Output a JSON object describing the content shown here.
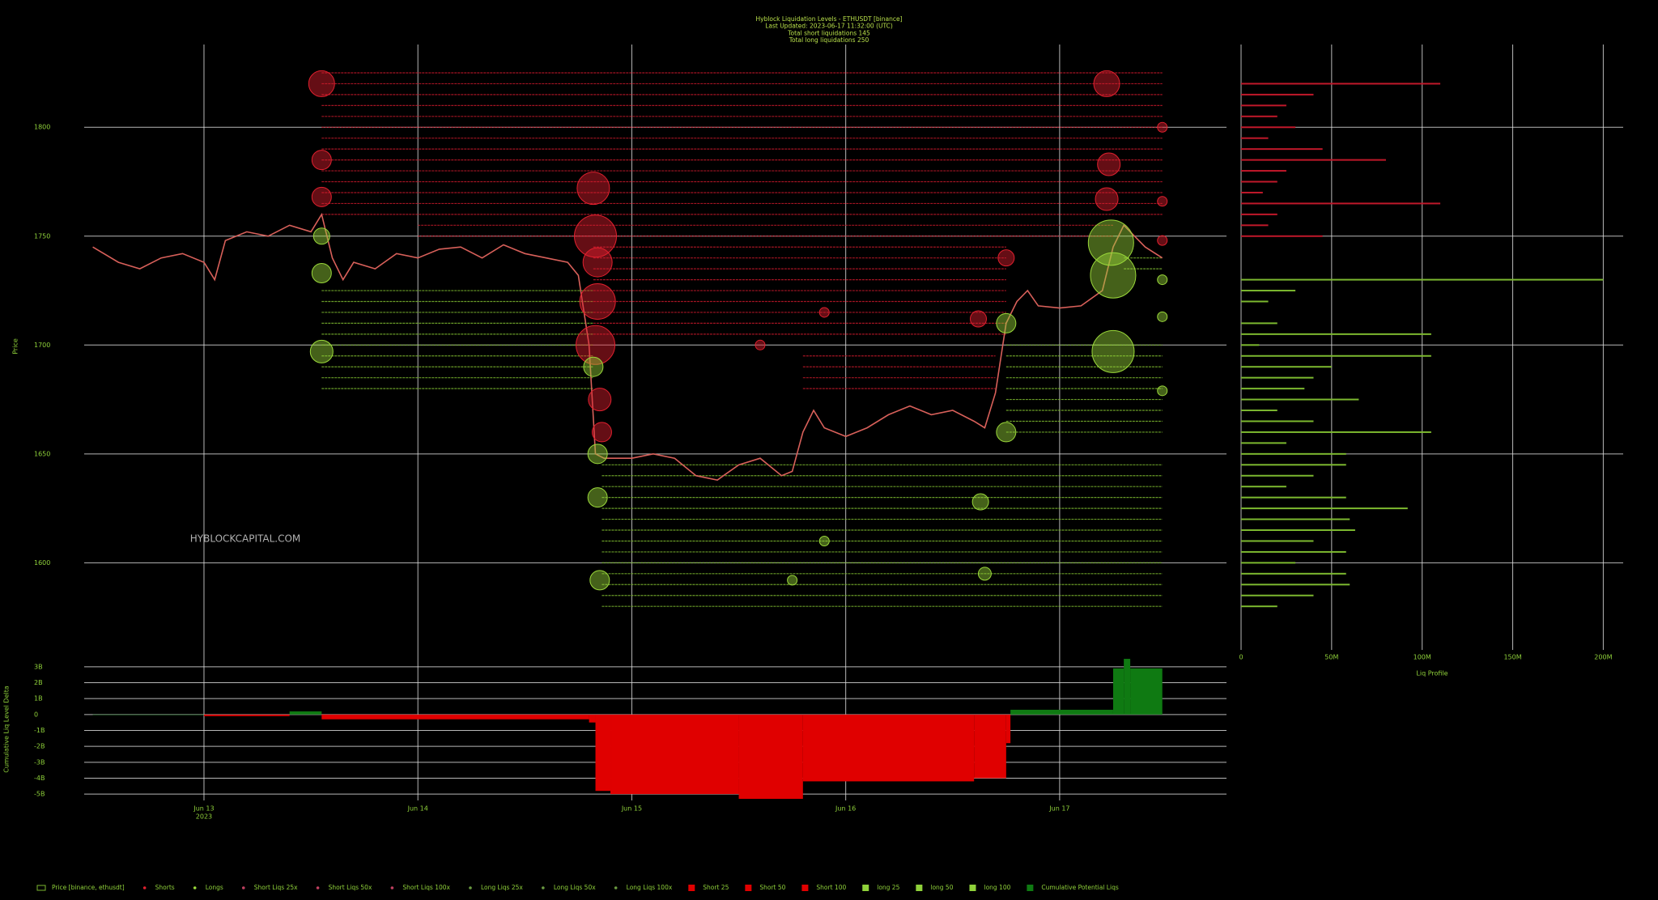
{
  "chart_data": {
    "type": "liquidation",
    "title_lines": [
      "Hyblock Liquidation Levels - ETHUSDT [binance]",
      "Last Updated: 2023-06-17 11:32:00 (UTC)",
      "Total short liquidations 145",
      "Total long liquidations 250"
    ],
    "watermark": "HYBLOCKCAPITAL.COM",
    "ylabel": "Price",
    "delta_ylabel": "Cumulative Liq Level Delta",
    "profile_xlabel": "Liq Profile",
    "xlim": [
      12.44,
      17.78
    ],
    "xticks": [
      {
        "value": 13,
        "label": "Jun 13"
      },
      {
        "value": 14,
        "label": "Jun 14"
      },
      {
        "value": 15,
        "label": "Jun 15"
      },
      {
        "value": 16,
        "label": "Jun 16"
      },
      {
        "value": 17,
        "label": "Jun 17"
      }
    ],
    "xtick_year": "2023",
    "ylim": [
      1560,
      1838
    ],
    "yticks": [
      1600,
      1650,
      1700,
      1750,
      1800
    ],
    "grid": true,
    "price": {
      "name": "Price [binance, ethusdt]",
      "color": "#d8605a",
      "x": [
        12.48,
        12.6,
        12.7,
        12.8,
        12.9,
        13.0,
        13.05,
        13.1,
        13.2,
        13.3,
        13.4,
        13.5,
        13.55,
        13.6,
        13.65,
        13.7,
        13.8,
        13.9,
        14.0,
        14.1,
        14.2,
        14.3,
        14.4,
        14.5,
        14.6,
        14.7,
        14.75,
        14.8,
        14.83,
        14.87,
        15.0,
        15.1,
        15.2,
        15.3,
        15.4,
        15.5,
        15.6,
        15.7,
        15.75,
        15.8,
        15.85,
        15.9,
        16.0,
        16.1,
        16.2,
        16.3,
        16.4,
        16.5,
        16.6,
        16.65,
        16.7,
        16.75,
        16.8,
        16.85,
        16.9,
        17.0,
        17.1,
        17.2,
        17.25,
        17.3,
        17.35,
        17.4,
        17.48
      ],
      "values": [
        1745,
        1738,
        1735,
        1740,
        1742,
        1738,
        1730,
        1748,
        1752,
        1750,
        1755,
        1752,
        1760,
        1740,
        1730,
        1738,
        1735,
        1742,
        1740,
        1744,
        1745,
        1740,
        1746,
        1742,
        1740,
        1738,
        1732,
        1700,
        1650,
        1648,
        1648,
        1650,
        1648,
        1640,
        1638,
        1645,
        1648,
        1640,
        1642,
        1660,
        1670,
        1662,
        1658,
        1662,
        1668,
        1672,
        1668,
        1670,
        1665,
        1662,
        1678,
        1710,
        1720,
        1725,
        1718,
        1717,
        1718,
        1725,
        1745,
        1755,
        1750,
        1745,
        1740
      ]
    },
    "short_levels": {
      "color": "#c0182a",
      "start": [
        13.55,
        13.55,
        13.55,
        13.55,
        13.55,
        13.55,
        13.55,
        13.55,
        13.55,
        13.55,
        13.55,
        13.55,
        13.55,
        13.55,
        14.0,
        14.0,
        14.82,
        14.82,
        14.82,
        14.82,
        14.82,
        14.82,
        14.82,
        14.82,
        14.82,
        15.8,
        15.8,
        15.8,
        15.8
      ],
      "end": [
        17.48,
        17.48,
        17.48,
        17.48,
        17.48,
        17.48,
        17.48,
        17.48,
        17.48,
        17.48,
        17.48,
        17.48,
        17.48,
        17.48,
        17.25,
        17.25,
        16.75,
        16.75,
        16.75,
        16.75,
        16.75,
        16.75,
        16.75,
        16.75,
        16.75,
        16.7,
        16.7,
        16.7,
        16.7
      ],
      "price": [
        1825,
        1820,
        1815,
        1810,
        1805,
        1800,
        1795,
        1790,
        1785,
        1780,
        1775,
        1770,
        1765,
        1760,
        1755,
        1750,
        1745,
        1740,
        1735,
        1730,
        1725,
        1720,
        1715,
        1710,
        1705,
        1695,
        1690,
        1685,
        1680
      ]
    },
    "long_levels": {
      "color": "#7cb82f",
      "start": [
        13.55,
        13.55,
        13.55,
        13.55,
        13.55,
        13.55,
        13.55,
        13.55,
        13.55,
        13.55,
        14.86,
        14.86,
        14.86,
        14.86,
        14.86,
        14.86,
        14.86,
        14.86,
        14.86,
        14.86,
        14.86,
        14.86,
        14.86,
        14.86,
        17.3,
        17.3,
        16.75,
        16.75,
        16.75,
        16.75,
        16.75,
        16.75,
        16.75,
        16.75,
        16.75
      ],
      "end": [
        14.82,
        14.82,
        14.82,
        14.82,
        14.82,
        14.82,
        14.82,
        14.82,
        14.82,
        14.82,
        17.48,
        17.48,
        17.48,
        17.48,
        17.48,
        17.48,
        17.48,
        17.48,
        17.48,
        17.48,
        17.48,
        17.48,
        17.48,
        17.48,
        17.48,
        17.48,
        17.48,
        17.48,
        17.48,
        17.48,
        17.48,
        17.48,
        17.48,
        17.48,
        17.48
      ],
      "price": [
        1725,
        1720,
        1715,
        1710,
        1705,
        1700,
        1695,
        1690,
        1685,
        1680,
        1645,
        1640,
        1635,
        1630,
        1625,
        1620,
        1615,
        1610,
        1605,
        1600,
        1595,
        1590,
        1585,
        1580,
        1740,
        1735,
        1700,
        1695,
        1690,
        1685,
        1680,
        1675,
        1670,
        1665,
        1660
      ]
    },
    "short_liqs": {
      "color": "#e0202e",
      "x": [
        13.55,
        13.55,
        13.55,
        14.82,
        14.83,
        14.84,
        14.84,
        14.83,
        14.85,
        14.86,
        16.62,
        16.75,
        17.22,
        17.23,
        17.22,
        17.48,
        17.48,
        17.48,
        15.6,
        15.9
      ],
      "price": [
        1820,
        1785,
        1768,
        1772,
        1750,
        1738,
        1720,
        1700,
        1675,
        1660,
        1712,
        1740,
        1820,
        1783,
        1767,
        1800,
        1766,
        1748,
        1700,
        1715
      ],
      "sizes": [
        8,
        6,
        6,
        10,
        13,
        9,
        11,
        12,
        7,
        6,
        5,
        5,
        8,
        7,
        7,
        3,
        3,
        3,
        3,
        3
      ]
    },
    "long_liqs": {
      "color": "#9ad83a",
      "x": [
        13.55,
        13.55,
        13.55,
        14.82,
        14.84,
        14.84,
        14.85,
        16.63,
        16.65,
        16.75,
        16.75,
        17.24,
        17.25,
        17.25,
        17.48,
        17.48,
        17.48,
        15.75,
        15.9
      ],
      "price": [
        1750,
        1733,
        1697,
        1690,
        1650,
        1630,
        1592,
        1628,
        1595,
        1710,
        1660,
        1747,
        1732,
        1697,
        1730,
        1713,
        1679,
        1592,
        1610
      ],
      "sizes": [
        5,
        6,
        7,
        6,
        6,
        6,
        6,
        5,
        4,
        6,
        6,
        14,
        14,
        13,
        3,
        3,
        3,
        3,
        3
      ]
    },
    "profile": {
      "xlim": [
        0,
        211000000
      ],
      "xticks": [
        0,
        {
          "value": 50000000,
          "label": "50M"
        },
        {
          "value": 100000000,
          "label": "100M"
        },
        {
          "value": 150000000,
          "label": "150M"
        },
        {
          "value": 200000000,
          "label": "200M"
        }
      ],
      "short_color": "#c0182a",
      "long_color": "#7cb82f",
      "short_price": [
        1820,
        1815,
        1810,
        1805,
        1800,
        1795,
        1790,
        1785,
        1780,
        1775,
        1770,
        1765,
        1760,
        1755,
        1750
      ],
      "short_values": [
        110000000,
        40000000,
        25000000,
        20000000,
        30000000,
        15000000,
        45000000,
        80000000,
        25000000,
        20000000,
        12000000,
        110000000,
        20000000,
        15000000,
        45000000
      ],
      "long_price": [
        1730,
        1725,
        1720,
        1710,
        1705,
        1700,
        1695,
        1690,
        1685,
        1680,
        1675,
        1670,
        1665,
        1660,
        1655,
        1650,
        1645,
        1640,
        1635,
        1630,
        1625,
        1620,
        1615,
        1610,
        1605,
        1600,
        1595,
        1590,
        1585,
        1580
      ],
      "long_values": [
        200000000,
        30000000,
        15000000,
        20000000,
        105000000,
        10000000,
        105000000,
        50000000,
        40000000,
        35000000,
        65000000,
        20000000,
        40000000,
        105000000,
        25000000,
        58000000,
        58000000,
        40000000,
        25000000,
        58000000,
        92000000,
        60000000,
        63000000,
        40000000,
        58000000,
        30000000,
        58000000,
        60000000,
        40000000,
        20000000
      ]
    },
    "delta": {
      "ylim": [
        -5400000000,
        3400000000
      ],
      "yticks": [
        {
          "value": 3000000000,
          "label": "3B"
        },
        {
          "value": 2000000000,
          "label": "2B"
        },
        {
          "value": 1000000000,
          "label": "1B"
        },
        0,
        {
          "value": -1000000000,
          "label": "-1B"
        },
        {
          "value": -2000000000,
          "label": "-2B"
        },
        {
          "value": -3000000000,
          "label": "-3B"
        },
        {
          "value": -4000000000,
          "label": "-4B"
        },
        {
          "value": -5000000000,
          "label": "-5B"
        }
      ],
      "pos_color": "#0f7a12",
      "neg_color": "#e00000",
      "x": [
        12.48,
        13.0,
        13.4,
        13.55,
        14.8,
        14.83,
        14.9,
        15.5,
        15.8,
        16.6,
        16.75,
        16.77,
        17.25,
        17.3,
        17.33
      ],
      "values": [
        0,
        -100000000,
        200000000,
        -300000000,
        -500000000,
        -4800000000,
        -5000000000,
        -5300000000,
        -4200000000,
        -4000000000,
        -1800000000,
        300000000,
        2900000000,
        3500000000,
        2900000000
      ]
    },
    "legend": [
      {
        "name": "Price [binance, ethusdt]",
        "color": "#7cb82f",
        "marker": "line"
      },
      {
        "name": "Shorts",
        "color": "#e0202e",
        "marker": "dot"
      },
      {
        "name": "Longs",
        "color": "#9ad83a",
        "marker": "dot"
      },
      {
        "name": "Short Liqs 25x",
        "color": "#c04060",
        "marker": "dot"
      },
      {
        "name": "Short Liqs 50x",
        "color": "#c04060",
        "marker": "dot"
      },
      {
        "name": "Short Liqs 100x",
        "color": "#c04060",
        "marker": "dot"
      },
      {
        "name": "Long Liqs 25x",
        "color": "#6a9a40",
        "marker": "dot"
      },
      {
        "name": "Long Liqs 50x",
        "color": "#6a9a40",
        "marker": "dot"
      },
      {
        "name": "Long Liqs 100x",
        "color": "#6a9a40",
        "marker": "dot"
      },
      {
        "name": "Short 25",
        "color": "#e00000",
        "marker": "square"
      },
      {
        "name": "Short 50",
        "color": "#e00000",
        "marker": "square"
      },
      {
        "name": "Short 100",
        "color": "#e00000",
        "marker": "square"
      },
      {
        "name": "long 25",
        "color": "#8fd13a",
        "marker": "square"
      },
      {
        "name": "long 50",
        "color": "#8fd13a",
        "marker": "square"
      },
      {
        "name": "long 100",
        "color": "#8fd13a",
        "marker": "square"
      },
      {
        "name": "Cumulative Potential Liqs",
        "color": "#0f7a12",
        "marker": "square"
      }
    ]
  }
}
